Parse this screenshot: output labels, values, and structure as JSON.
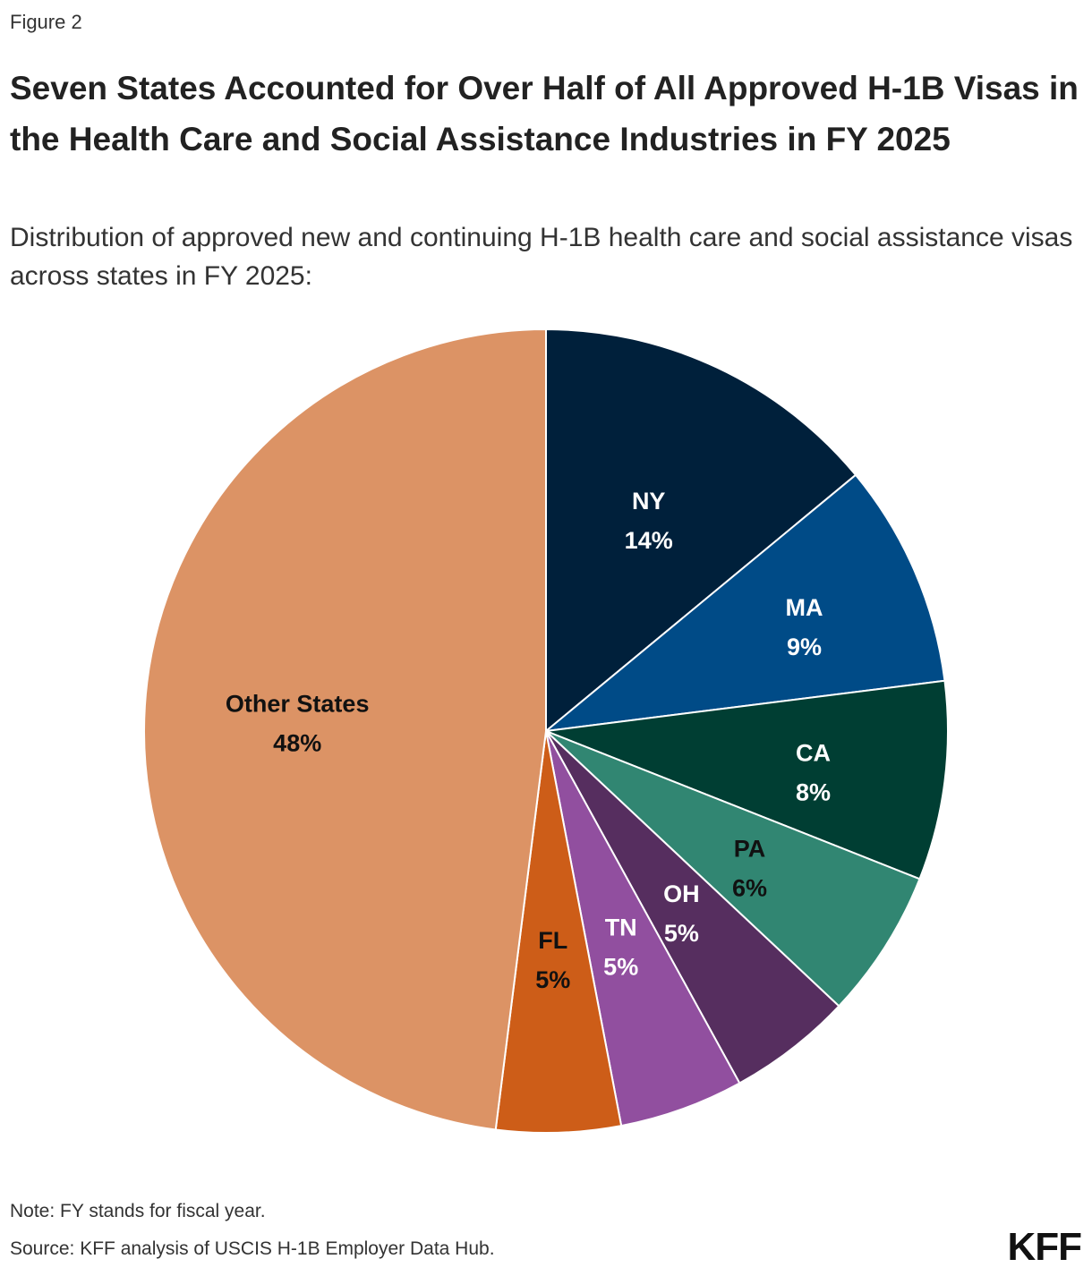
{
  "figure_label": "Figure 2",
  "title": "Seven States Accounted for Over Half of All Approved H-1B Visas in the Health Care and Social Assistance Industries in FY 2025",
  "subtitle": "Distribution of approved new and continuing H-1B health care and social assistance visas across states in FY 2025:",
  "note": "Note: FY stands for fiscal year.",
  "source": "Source: KFF analysis of USCIS H-1B Employer Data Hub.",
  "logo": "KFF",
  "chart_data": {
    "type": "pie",
    "title": "Seven States Accounted for Over Half of All Approved H-1B Visas in the Health Care and Social Assistance Industries in FY 2025",
    "start": "12 o'clock, clockwise",
    "slices": [
      {
        "label": "NY",
        "value": 14,
        "value_label": "14%",
        "color": "#00203b",
        "text_color": "#ffffff"
      },
      {
        "label": "MA",
        "value": 9,
        "value_label": "9%",
        "color": "#004b87",
        "text_color": "#ffffff"
      },
      {
        "label": "CA",
        "value": 8,
        "value_label": "8%",
        "color": "#003e33",
        "text_color": "#ffffff"
      },
      {
        "label": "PA",
        "value": 6,
        "value_label": "6%",
        "color": "#318672",
        "text_color": "#111111"
      },
      {
        "label": "OH",
        "value": 5,
        "value_label": "5%",
        "color": "#562e5f",
        "text_color": "#ffffff"
      },
      {
        "label": "TN",
        "value": 5,
        "value_label": "5%",
        "color": "#914f9f",
        "text_color": "#ffffff"
      },
      {
        "label": "FL",
        "value": 5,
        "value_label": "5%",
        "color": "#cd5d18",
        "text_color": "#111111"
      },
      {
        "label": "Other States",
        "value": 48,
        "value_label": "48%",
        "color": "#dc9365",
        "text_color": "#111111"
      }
    ]
  }
}
